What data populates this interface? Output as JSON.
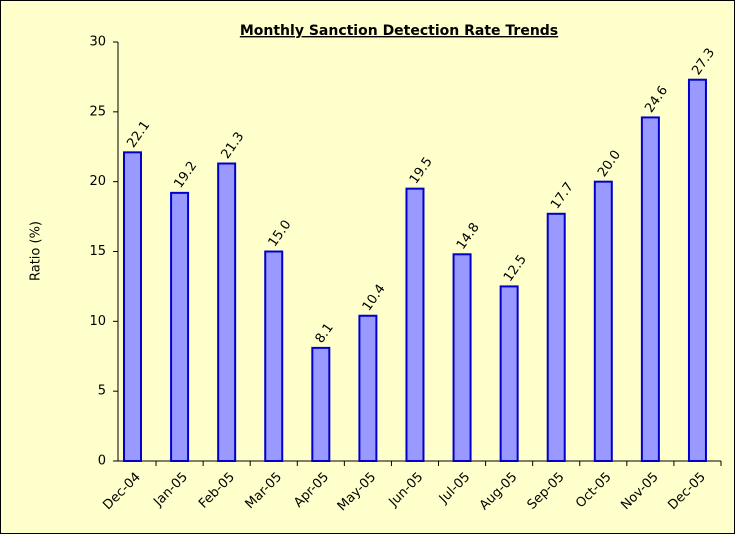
{
  "chart_data": {
    "type": "bar",
    "title": "Monthly Sanction Detection Rate Trends",
    "y_label": "Ratio (%)",
    "categories": [
      "Dec-04",
      "Jan-05",
      "Feb-05",
      "Mar-05",
      "Apr-05",
      "May-05",
      "Jun-05",
      "Jul-05",
      "Aug-05",
      "Sep-05",
      "Oct-05",
      "Nov-05",
      "Dec-05"
    ],
    "values": [
      22.1,
      19.2,
      21.3,
      15.0,
      8.1,
      10.4,
      19.5,
      14.8,
      12.5,
      17.7,
      20.0,
      24.6,
      27.3
    ],
    "value_labels": [
      "22.1",
      "19.2",
      "21.3",
      "15.0",
      "8.1",
      "10.4",
      "19.5",
      "14.8",
      "12.5",
      "17.7",
      "20.0",
      "24.6",
      "27.3"
    ],
    "color": "#9999ff",
    "ylim": [
      0,
      30
    ],
    "yticks": [
      0,
      5,
      10,
      15,
      20,
      25,
      30
    ],
    "grid": false
  }
}
